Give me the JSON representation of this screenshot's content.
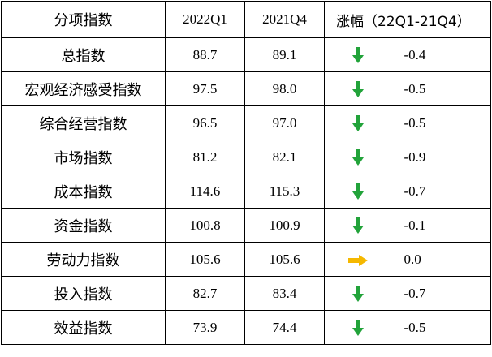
{
  "colors": {
    "down": "#22a33a",
    "flat": "#f5b800"
  },
  "header": {
    "name": "分项指数",
    "q1": "2022Q1",
    "q4": "2021Q4",
    "change": "涨幅（22Q1-21Q4）"
  },
  "rows": [
    {
      "name": "总指数",
      "q1": "88.7",
      "q4": "89.1",
      "change": "-0.4",
      "trend": "down",
      "icon": "down-arrow-icon"
    },
    {
      "name": "宏观经济感受指数",
      "q1": "97.5",
      "q4": "98.0",
      "change": "-0.5",
      "trend": "down",
      "icon": "down-arrow-icon"
    },
    {
      "name": "综合经营指数",
      "q1": "96.5",
      "q4": "97.0",
      "change": "-0.5",
      "trend": "down",
      "icon": "down-arrow-icon"
    },
    {
      "name": "市场指数",
      "q1": "81.2",
      "q4": "82.1",
      "change": "-0.9",
      "trend": "down",
      "icon": "down-arrow-icon"
    },
    {
      "name": "成本指数",
      "q1": "114.6",
      "q4": "115.3",
      "change": "-0.7",
      "trend": "down",
      "icon": "down-arrow-icon"
    },
    {
      "name": "资金指数",
      "q1": "100.8",
      "q4": "100.9",
      "change": "-0.1",
      "trend": "down",
      "icon": "down-arrow-icon"
    },
    {
      "name": "劳动力指数",
      "q1": "105.6",
      "q4": "105.6",
      "change": "0.0",
      "trend": "flat",
      "icon": "right-arrow-icon"
    },
    {
      "name": "投入指数",
      "q1": "82.7",
      "q4": "83.4",
      "change": "-0.7",
      "trend": "down",
      "icon": "down-arrow-icon"
    },
    {
      "name": "效益指数",
      "q1": "73.9",
      "q4": "74.4",
      "change": "-0.5",
      "trend": "down",
      "icon": "down-arrow-icon"
    }
  ]
}
